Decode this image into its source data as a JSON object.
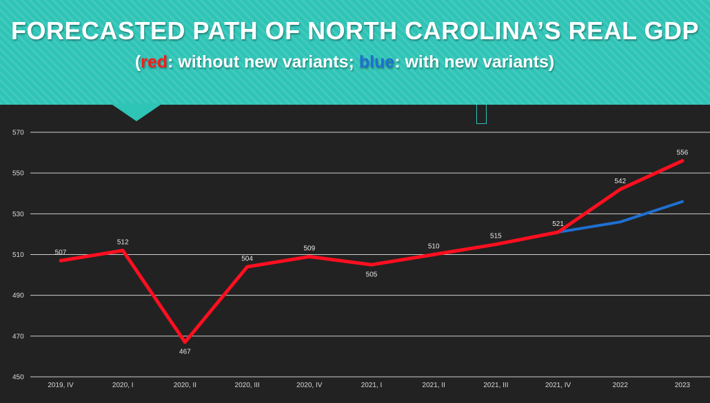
{
  "header": {
    "title": "FORECASTED PATH OF NORTH CAROLINA’S REAL GDP",
    "subtitle_open": "(",
    "subtitle_red": "red",
    "subtitle_mid": ": without new variants;  ",
    "subtitle_blue": "blue",
    "subtitle_close": ": with new variants)"
  },
  "colors": {
    "banner": "#2ec4b6",
    "background": "#222222",
    "red_series": "#ff0f1f",
    "blue_series": "#1f6fd1",
    "grid": "#d0d0d0"
  },
  "chart_data": {
    "type": "line",
    "title": "",
    "xlabel": "",
    "ylabel": "",
    "ylim": [
      450,
      570
    ],
    "yticks": [
      450,
      470,
      490,
      510,
      530,
      550,
      570
    ],
    "grid": true,
    "legend": "none",
    "categories": [
      "2019, IV",
      "2020, I",
      "2020, II",
      "2020, III",
      "2020, IV",
      "2021, I",
      "2021, II",
      "2021, III",
      "2021, IV",
      "2022",
      "2023"
    ],
    "series": [
      {
        "color": "#ff0f1f",
        "values": [
          507,
          512,
          467,
          504,
          509,
          505,
          510,
          515,
          521,
          542,
          556
        ],
        "labels": [
          "507",
          "512",
          "467",
          "504",
          "509",
          "505",
          "510",
          "515",
          "521",
          "542",
          "556"
        ]
      },
      {
        "color": "#1f6fd1",
        "values": [
          null,
          null,
          null,
          null,
          null,
          null,
          null,
          null,
          521,
          526,
          536
        ]
      }
    ]
  }
}
